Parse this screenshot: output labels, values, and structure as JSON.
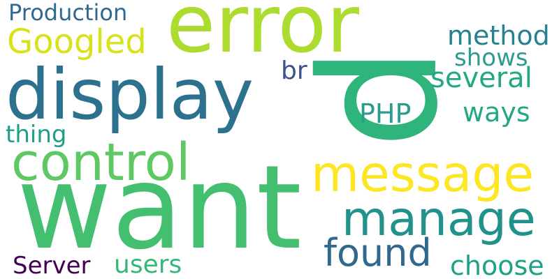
{
  "words": [
    {
      "id": "error",
      "text": "error",
      "color": "#addc30"
    },
    {
      "id": "p",
      "text": "p",
      "color": "#2fb47c"
    },
    {
      "id": "display",
      "text": "display",
      "color": "#2c728e"
    },
    {
      "id": "want",
      "text": "want",
      "color": "#44bf70"
    },
    {
      "id": "control",
      "text": "control",
      "color": "#5ec962"
    },
    {
      "id": "message",
      "text": "message",
      "color": "#fde725"
    },
    {
      "id": "manage",
      "text": "manage",
      "color": "#21918c"
    },
    {
      "id": "googled",
      "text": "Googled",
      "color": "#d8e219"
    },
    {
      "id": "production",
      "text": "Production",
      "color": "#31688e"
    },
    {
      "id": "method",
      "text": "method",
      "color": "#26828e"
    },
    {
      "id": "shows",
      "text": "shows",
      "color": "#2a9d8f"
    },
    {
      "id": "several",
      "text": "several",
      "color": "#22a884"
    },
    {
      "id": "br",
      "text": "br",
      "color": "#3b528b"
    },
    {
      "id": "php",
      "text": "PHP",
      "color": "#2a9d8f"
    },
    {
      "id": "ways",
      "text": "ways",
      "color": "#22a884"
    },
    {
      "id": "thing",
      "text": "thing",
      "color": "#1f9e89"
    },
    {
      "id": "found",
      "text": "found",
      "color": "#31688e"
    },
    {
      "id": "server",
      "text": "Server",
      "color": "#440154"
    },
    {
      "id": "users",
      "text": "users",
      "color": "#35b779"
    },
    {
      "id": "choose",
      "text": "choose",
      "color": "#1fa187"
    }
  ]
}
